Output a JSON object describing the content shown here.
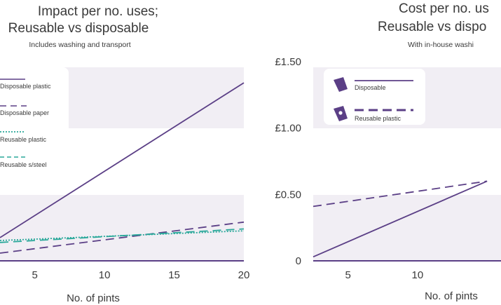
{
  "chart_data": [
    {
      "type": "line",
      "title_line1": "Impact per no. uses;",
      "title_line2": "Reusable vs disposable",
      "subtitle": "Includes washing and transport",
      "xlabel": "No. of pints",
      "xlim": [
        2.5,
        20
      ],
      "ylim": [
        0,
        1
      ],
      "x_ticks": [
        5,
        10,
        15,
        20
      ],
      "tick_labels": [
        "5",
        "10",
        "15",
        "20"
      ],
      "bands": [
        [
          0,
          0.25
        ],
        [
          0.5,
          0.75
        ]
      ],
      "legend_position": "top-left",
      "series": [
        {
          "name": "Disposable plastic",
          "style": "solid",
          "color": "#5b3f86",
          "x": [
            2.5,
            20
          ],
          "y": [
            0.12,
            0.92
          ]
        },
        {
          "name": "Disposable paper",
          "style": "dashed",
          "color": "#5b3f86",
          "x": [
            2.5,
            20
          ],
          "y": [
            0.04,
            0.2
          ]
        },
        {
          "name": "Reusable plastic",
          "style": "dotted",
          "color": "#2aa89a",
          "x": [
            2.5,
            20
          ],
          "y": [
            0.105,
            0.155
          ]
        },
        {
          "name": "Reusable s/steel",
          "style": "dashed",
          "color": "#2aa89a",
          "x": [
            2.5,
            20
          ],
          "y": [
            0.095,
            0.165
          ]
        }
      ],
      "baseline": {
        "style": "solid",
        "color": "#5b3f86",
        "y": 0
      }
    },
    {
      "type": "line",
      "title_line1": "Cost per no. us",
      "title_line2": "Reusable vs dispo",
      "subtitle": "With in-house washi",
      "xlabel": "No. of pints",
      "xlim": [
        2.5,
        16
      ],
      "ylim": [
        0,
        1.5
      ],
      "x_ticks": [
        5,
        10
      ],
      "tick_labels": [
        "5",
        "10"
      ],
      "y_ticks": [
        0,
        0.5,
        1.0,
        1.5
      ],
      "y_tick_labels": [
        "0",
        "£0.50",
        "£1.00",
        "£1.50"
      ],
      "bands": [
        [
          0,
          0.5
        ],
        [
          1.0,
          1.5
        ]
      ],
      "legend_position": "top-left",
      "series": [
        {
          "name": "Disposable",
          "style": "solid",
          "color": "#5b3f86",
          "x": [
            2.5,
            15
          ],
          "y": [
            0.03,
            0.6
          ]
        },
        {
          "name": "Reusable plastic",
          "style": "dashed",
          "color": "#5b3f86",
          "x": [
            2.5,
            15
          ],
          "y": [
            0.41,
            0.6
          ]
        }
      ],
      "baseline": {
        "style": "solid",
        "color": "#5b3f86",
        "y": 0
      }
    }
  ],
  "colors": {
    "purple": "#5b3f86",
    "teal": "#2aa89a",
    "band": "#f1eef4"
  }
}
